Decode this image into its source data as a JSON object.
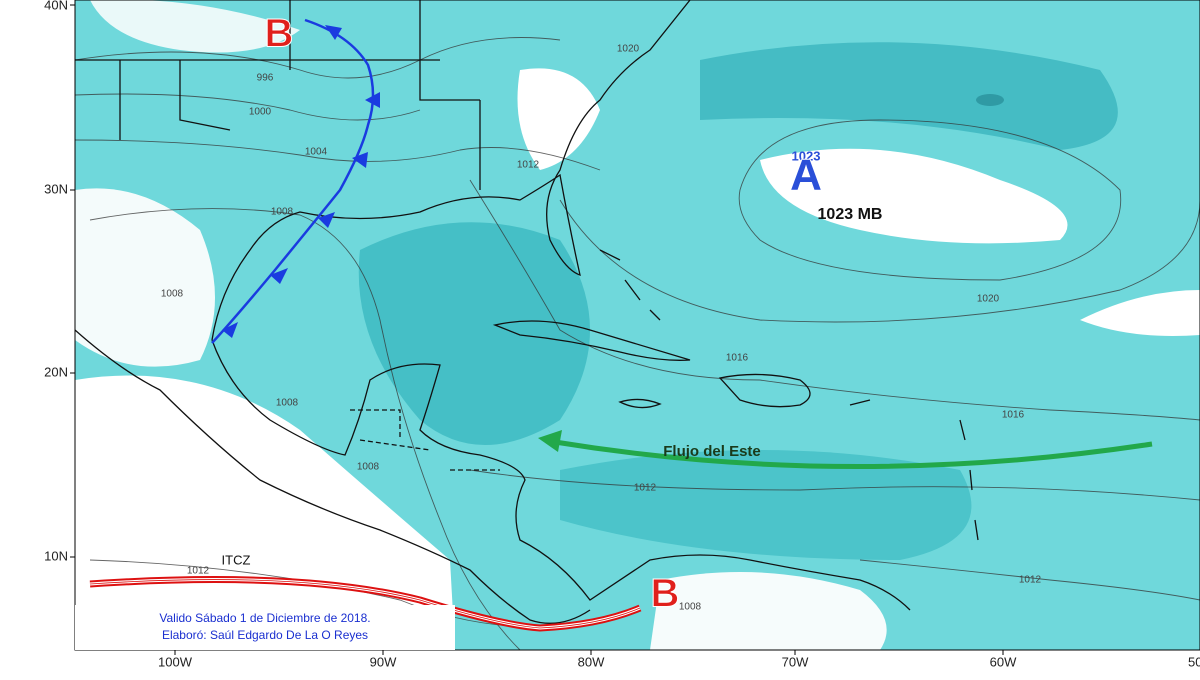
{
  "map": {
    "latitude_labels": [
      "40N",
      "30N",
      "20N",
      "10N"
    ],
    "longitude_labels": [
      "100W",
      "90W",
      "80W",
      "70W",
      "60W",
      "50"
    ],
    "isobar_labels": [
      "1020",
      "996",
      "1000",
      "1004",
      "1008",
      "1012",
      "1008",
      "1008",
      "1008",
      "1016",
      "1020",
      "1016",
      "1012",
      "1012",
      "1012",
      "1008",
      "1023"
    ],
    "pressure_systems": {
      "low_north": "B",
      "low_south": "B",
      "high": "A",
      "high_value": "1023 MB"
    },
    "annotations": {
      "flow": "Flujo del Este",
      "itcz": "ITCZ"
    },
    "footer": {
      "valid": "Valido  Sábado 1 de Diciembre de 2018.",
      "author": "Elaboró: Saúl Edgardo De La O Reyes"
    }
  }
}
